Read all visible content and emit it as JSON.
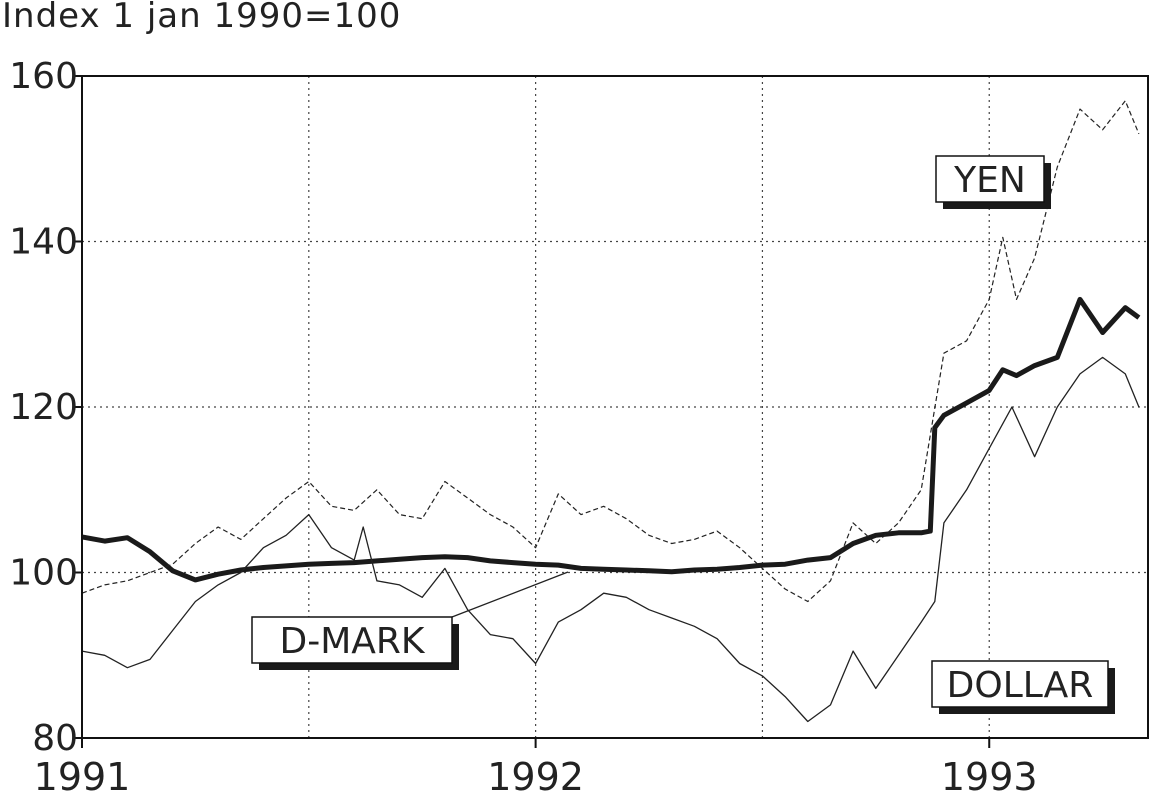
{
  "chart_data": {
    "type": "line",
    "title": "Index 1 jan 1990=100",
    "xlabel": "",
    "ylabel": "",
    "xlim": [
      1991.0,
      1993.35
    ],
    "ylim": [
      80,
      160
    ],
    "x_ticks": [
      1991,
      1992,
      1993
    ],
    "x_tick_labels": [
      "1991",
      "1992",
      "1993"
    ],
    "y_ticks": [
      80,
      100,
      120,
      140,
      160
    ],
    "y_tick_labels": [
      "80",
      "100",
      "120",
      "140",
      "160"
    ],
    "grid": true,
    "series": [
      {
        "name": "D-MARK",
        "style": "thick",
        "x": [
          1991.0,
          1991.05,
          1991.1,
          1991.15,
          1991.2,
          1991.25,
          1991.3,
          1991.35,
          1991.4,
          1991.45,
          1991.5,
          1991.55,
          1991.6,
          1991.65,
          1991.7,
          1991.75,
          1991.8,
          1991.85,
          1991.9,
          1991.95,
          1992.0,
          1992.05,
          1992.1,
          1992.15,
          1992.2,
          1992.25,
          1992.3,
          1992.35,
          1992.4,
          1992.45,
          1992.5,
          1992.55,
          1992.6,
          1992.65,
          1992.7,
          1992.75,
          1992.8,
          1992.85,
          1992.87,
          1992.88,
          1992.9,
          1992.95,
          1993.0,
          1993.03,
          1993.06,
          1993.1,
          1993.15,
          1993.2,
          1993.25,
          1993.3,
          1993.33
        ],
        "values": [
          104.3,
          103.8,
          104.2,
          102.5,
          100.2,
          99.1,
          99.8,
          100.3,
          100.6,
          100.8,
          101.0,
          101.1,
          101.2,
          101.4,
          101.6,
          101.8,
          101.9,
          101.8,
          101.4,
          101.2,
          101.0,
          100.9,
          100.5,
          100.4,
          100.3,
          100.2,
          100.1,
          100.3,
          100.4,
          100.6,
          100.9,
          101.0,
          101.5,
          101.8,
          103.5,
          104.5,
          104.8,
          104.8,
          105.0,
          117.5,
          119.0,
          120.5,
          122.0,
          124.5,
          123.8,
          125.0,
          126.0,
          133.0,
          129.0,
          132.0,
          130.8
        ]
      },
      {
        "name": "YEN",
        "style": "dashed",
        "x": [
          1991.0,
          1991.05,
          1991.1,
          1991.15,
          1991.2,
          1991.25,
          1991.3,
          1991.35,
          1991.4,
          1991.45,
          1991.5,
          1991.55,
          1991.6,
          1991.65,
          1991.7,
          1991.75,
          1991.8,
          1991.85,
          1991.9,
          1991.95,
          1992.0,
          1992.05,
          1992.1,
          1992.15,
          1992.2,
          1992.25,
          1992.3,
          1992.35,
          1992.4,
          1992.45,
          1992.5,
          1992.55,
          1992.6,
          1992.65,
          1992.7,
          1992.75,
          1992.8,
          1992.85,
          1992.9,
          1992.95,
          1993.0,
          1993.03,
          1993.06,
          1993.1,
          1993.15,
          1993.2,
          1993.25,
          1993.3,
          1993.33
        ],
        "values": [
          97.5,
          98.5,
          99.0,
          100.0,
          101.0,
          103.5,
          105.5,
          104.0,
          106.5,
          109.0,
          111.0,
          108.0,
          107.5,
          110.0,
          107.0,
          106.5,
          111.0,
          109.0,
          107.0,
          105.5,
          103.0,
          109.5,
          107.0,
          108.0,
          106.5,
          104.5,
          103.5,
          104.0,
          105.0,
          103.0,
          100.5,
          98.0,
          96.5,
          99.0,
          106.0,
          103.5,
          106.0,
          110.0,
          126.5,
          128.0,
          133.0,
          140.5,
          133.0,
          138.0,
          149.0,
          156.0,
          153.5,
          157.0,
          153.0
        ]
      },
      {
        "name": "DOLLAR",
        "style": "thin",
        "x": [
          1991.0,
          1991.05,
          1991.1,
          1991.15,
          1991.2,
          1991.25,
          1991.3,
          1991.35,
          1991.4,
          1991.45,
          1991.5,
          1991.55,
          1991.6,
          1991.62,
          1991.65,
          1991.7,
          1991.75,
          1991.8,
          1991.85,
          1991.9,
          1991.95,
          1992.0,
          1992.05,
          1992.1,
          1992.15,
          1992.2,
          1992.25,
          1992.3,
          1992.35,
          1992.4,
          1992.45,
          1992.5,
          1992.55,
          1992.6,
          1992.65,
          1992.7,
          1992.75,
          1992.8,
          1992.85,
          1992.88,
          1992.9,
          1992.95,
          1993.0,
          1993.05,
          1993.1,
          1993.15,
          1993.2,
          1993.25,
          1993.3,
          1993.33
        ],
        "values": [
          90.5,
          90.0,
          88.5,
          89.5,
          93.0,
          96.5,
          98.5,
          100.0,
          103.0,
          104.5,
          107.0,
          103.0,
          101.5,
          105.5,
          99.0,
          98.5,
          97.0,
          100.5,
          95.5,
          92.5,
          92.0,
          89.0,
          94.0,
          95.5,
          97.5,
          97.0,
          95.5,
          94.5,
          93.5,
          92.0,
          89.0,
          87.5,
          85.0,
          82.0,
          84.0,
          90.5,
          86.0,
          90.0,
          94.0,
          96.5,
          106.0,
          110.0,
          115.0,
          120.0,
          114.0,
          120.0,
          124.0,
          126.0,
          124.0,
          120.0
        ]
      }
    ],
    "annotations": [
      {
        "text": "YEN",
        "series": "YEN"
      },
      {
        "text": "D-MARK",
        "series": "D-MARK"
      },
      {
        "text": "DOLLAR",
        "series": "DOLLAR"
      }
    ]
  }
}
